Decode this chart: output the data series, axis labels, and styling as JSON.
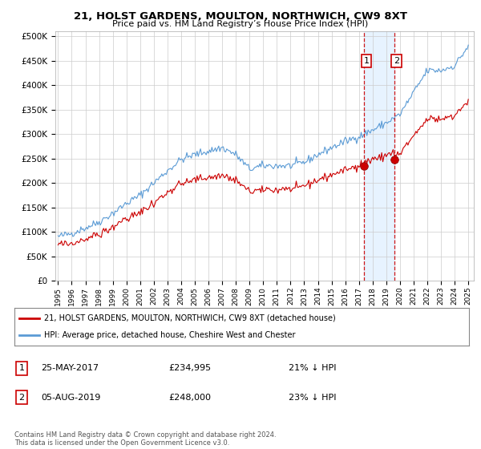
{
  "title": "21, HOLST GARDENS, MOULTON, NORTHWICH, CW9 8XT",
  "subtitle": "Price paid vs. HM Land Registry’s House Price Index (HPI)",
  "legend_line1": "21, HOLST GARDENS, MOULTON, NORTHWICH, CW9 8XT (detached house)",
  "legend_line2": "HPI: Average price, detached house, Cheshire West and Chester",
  "purchase1_date": 2017.39,
  "purchase1_price": 234995,
  "purchase1_label": "1",
  "purchase1_date_str": "25-MAY-2017",
  "purchase1_price_str": "£234,995",
  "purchase1_pct_str": "21% ↓ HPI",
  "purchase2_date": 2019.58,
  "purchase2_price": 248000,
  "purchase2_label": "2",
  "purchase2_date_str": "05-AUG-2019",
  "purchase2_price_str": "£248,000",
  "purchase2_pct_str": "23% ↓ HPI",
  "footnote": "Contains HM Land Registry data © Crown copyright and database right 2024.\nThis data is licensed under the Open Government Licence v3.0.",
  "red_color": "#cc0000",
  "blue_color": "#5b9bd5",
  "shade_color": "#ddeeff",
  "background_color": "#ffffff",
  "grid_color": "#cccccc",
  "ylim": [
    0,
    500000
  ],
  "xlim_start": 1994.8,
  "xlim_end": 2025.4
}
